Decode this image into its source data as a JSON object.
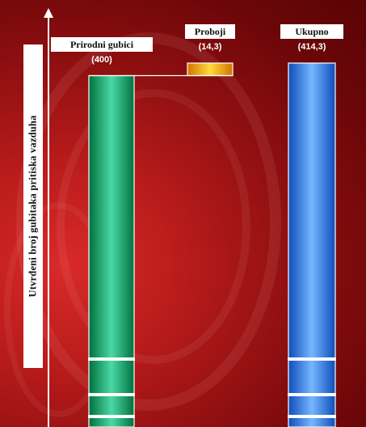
{
  "chart_data": {
    "type": "bar",
    "ylabel": "Utvrđeni broj gubitaka pritiska vazduha",
    "categories": [
      "Prirodni gubici",
      "Proboji",
      "Ukupno"
    ],
    "values": [
      400,
      14.3,
      414.3
    ],
    "value_labels": [
      "(400)",
      "(14,3)",
      "(414,3)"
    ],
    "bases": [
      0,
      400,
      0
    ],
    "colors": [
      "#0f9d6a",
      "#ff9f00",
      "#3a7ae8"
    ],
    "ylim": [
      0,
      414.3
    ],
    "grid": false,
    "legend": "none"
  }
}
